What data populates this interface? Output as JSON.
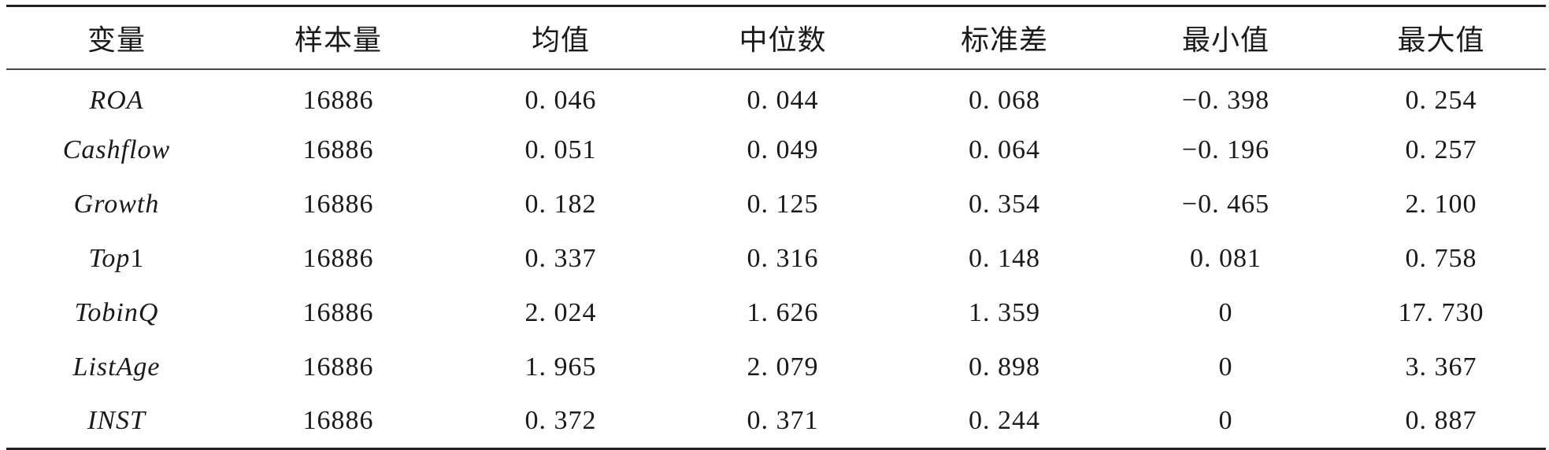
{
  "table": {
    "headers": [
      "变量",
      "样本量",
      "均值",
      "中位数",
      "标准差",
      "最小值",
      "最大值"
    ],
    "rows": [
      {
        "var": "ROA",
        "suffix": "",
        "n": "16886",
        "mean": "0. 046",
        "median": "0. 044",
        "sd": "0. 068",
        "min": "−0. 398",
        "max": "0. 254"
      },
      {
        "var": "Cashflow",
        "suffix": "",
        "n": "16886",
        "mean": "0. 051",
        "median": "0. 049",
        "sd": "0. 064",
        "min": "−0. 196",
        "max": "0. 257"
      },
      {
        "var": "Growth",
        "suffix": "",
        "n": "16886",
        "mean": "0. 182",
        "median": "0. 125",
        "sd": "0. 354",
        "min": "−0. 465",
        "max": "2. 100"
      },
      {
        "var": "Top",
        "suffix": "1",
        "n": "16886",
        "mean": "0. 337",
        "median": "0. 316",
        "sd": "0. 148",
        "min": "0. 081",
        "max": "0. 758"
      },
      {
        "var": "TobinQ",
        "suffix": "",
        "n": "16886",
        "mean": "2. 024",
        "median": "1. 626",
        "sd": "1. 359",
        "min": "0",
        "max": "17. 730"
      },
      {
        "var": "ListAge",
        "suffix": "",
        "n": "16886",
        "mean": "1. 965",
        "median": "2. 079",
        "sd": "0. 898",
        "min": "0",
        "max": "3. 367"
      },
      {
        "var": "INST",
        "suffix": "",
        "n": "16886",
        "mean": "0. 372",
        "median": "0. 371",
        "sd": "0. 244",
        "min": "0",
        "max": "0. 887"
      }
    ]
  }
}
